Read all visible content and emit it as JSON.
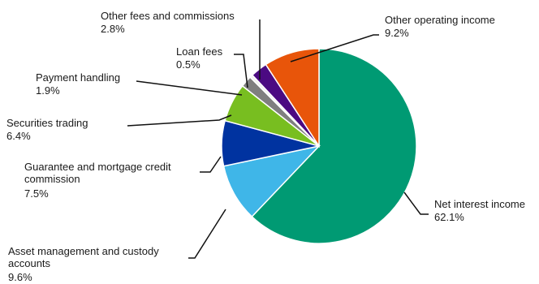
{
  "chart_data": {
    "type": "pie",
    "title": "",
    "slices": [
      {
        "key": "net-interest-income",
        "name": "Net interest income",
        "value_label": "62.1%",
        "value": 62.1,
        "color": "#009a73"
      },
      {
        "key": "asset-management",
        "name": "Asset management and custody accounts",
        "value_label": "9.6%",
        "value": 9.6,
        "color": "#3fb6e8"
      },
      {
        "key": "guarantee-mortgage",
        "name": "Guarantee and mortgage credit commission",
        "value_label": "7.5%",
        "value": 7.5,
        "color": "#0033a0"
      },
      {
        "key": "securities-trading",
        "name": "Securities trading",
        "value_label": "6.4%",
        "value": 6.4,
        "color": "#78be20"
      },
      {
        "key": "payment-handling",
        "name": "Payment handling",
        "value_label": "1.9%",
        "value": 1.9,
        "color": "#7f7f7f"
      },
      {
        "key": "loan-fees",
        "name": "Loan fees",
        "value_label": "0.5%",
        "value": 0.5,
        "color": "#f2f2f2"
      },
      {
        "key": "other-fees",
        "name": "Other fees and commissions",
        "value_label": "2.8%",
        "value": 2.8,
        "color": "#4b0a82"
      },
      {
        "key": "other-operating-income",
        "name": "Other operating income",
        "value_label": "9.2%",
        "value": 9.2,
        "color": "#e8550a"
      }
    ]
  }
}
